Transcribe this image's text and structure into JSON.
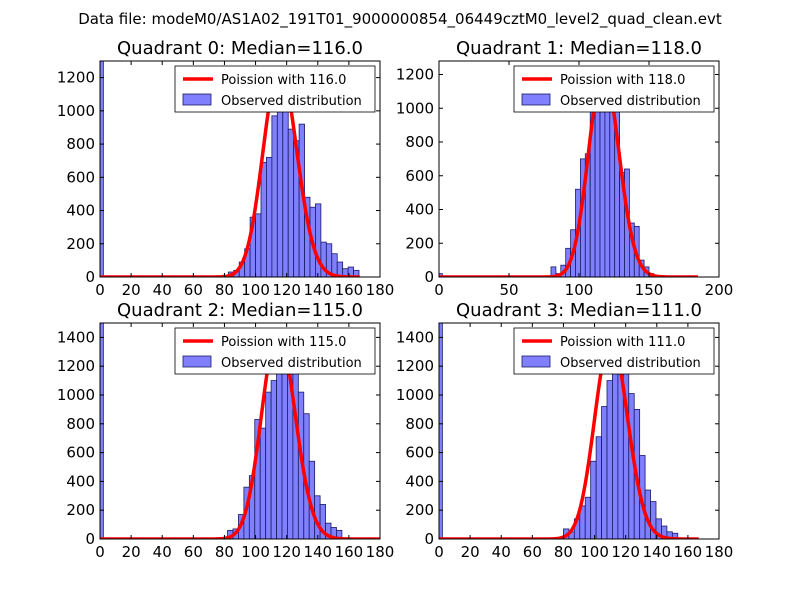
{
  "figure": {
    "suptitle": "Data file: modeM0/AS1A02_191T01_9000000854_06449cztM0_level2_quad_clean.evt"
  },
  "chart_data": [
    {
      "type": "bar",
      "title": "Quadrant 0: Median=116.0",
      "xlim": [
        0,
        180
      ],
      "ylim": [
        0,
        1300
      ],
      "xticks": [
        0,
        20,
        40,
        60,
        80,
        100,
        120,
        140,
        160,
        180
      ],
      "yticks": [
        0,
        200,
        400,
        600,
        800,
        1000,
        1200
      ],
      "legend": {
        "placement": "top-right",
        "line_label": "Poission with 116.0",
        "bar_label": "Observed distribution"
      },
      "line_color": "#ff0000",
      "bar_color": "#8080ff",
      "median": 116,
      "line_x_range": [
        0,
        167
      ],
      "bins": {
        "start": 79,
        "width": 3.5
      },
      "counts": [
        1303,
        10,
        30,
        40,
        90,
        170,
        360,
        380,
        690,
        720,
        970,
        1000,
        1260,
        890,
        820,
        920,
        480,
        420,
        440,
        210,
        200,
        140,
        90,
        50,
        60,
        40
      ],
      "count_start": 0
    },
    {
      "type": "bar",
      "title": "Quadrant 1: Median=118.0",
      "xlim": [
        0,
        200
      ],
      "ylim": [
        0,
        1280
      ],
      "xticks": [
        0,
        50,
        100,
        150,
        200
      ],
      "yticks": [
        0,
        200,
        400,
        600,
        800,
        1000,
        1200
      ],
      "legend": {
        "placement": "top-right",
        "line_label": "Poission with 118.0",
        "bar_label": "Observed distribution"
      },
      "line_color": "#ff0000",
      "bar_color": "#8080ff",
      "median": 118,
      "line_x_range": [
        0,
        185
      ],
      "bins": {
        "start": 80,
        "width": 3.5
      },
      "counts": [
        20,
        60,
        20,
        70,
        170,
        280,
        520,
        700,
        730,
        1000,
        1220,
        1220,
        1030,
        1000,
        1030,
        620,
        640,
        320,
        300,
        100,
        60,
        20
      ],
      "count_start": 0
    },
    {
      "type": "bar",
      "title": "Quadrant 2: Median=115.0",
      "xlim": [
        0,
        180
      ],
      "ylim": [
        0,
        1500
      ],
      "xticks": [
        0,
        20,
        40,
        60,
        80,
        100,
        120,
        140,
        160,
        180
      ],
      "yticks": [
        0,
        200,
        400,
        600,
        800,
        1000,
        1200,
        1400
      ],
      "legend": {
        "placement": "top-right",
        "line_label": "Poission with 115.0",
        "bar_label": "Observed distribution"
      },
      "line_color": "#ff0000",
      "bar_color": "#8080ff",
      "median": 115,
      "line_x_range": [
        0,
        180
      ],
      "bins": {
        "start": 82,
        "width": 3.5
      },
      "counts": [
        1500,
        60,
        70,
        170,
        360,
        440,
        830,
        770,
        1020,
        1100,
        1350,
        1300,
        1440,
        1280,
        1020,
        870,
        540,
        300,
        240,
        110,
        80,
        60
      ],
      "count_start": 0
    },
    {
      "type": "bar",
      "title": "Quadrant 3: Median=111.0",
      "xlim": [
        0,
        180
      ],
      "ylim": [
        0,
        1500
      ],
      "xticks": [
        0,
        20,
        40,
        60,
        80,
        100,
        120,
        140,
        160,
        180
      ],
      "yticks": [
        0,
        200,
        400,
        600,
        800,
        1000,
        1200,
        1400
      ],
      "legend": {
        "placement": "top-right",
        "line_label": "Poission with 111.0",
        "bar_label": "Observed distribution"
      },
      "line_color": "#ff0000",
      "bar_color": "#8080ff",
      "median": 111,
      "line_x_range": [
        0,
        167
      ],
      "bins": {
        "start": 80,
        "width": 3.5
      },
      "counts": [
        1500,
        70,
        50,
        140,
        230,
        290,
        540,
        710,
        920,
        1100,
        1300,
        1390,
        1270,
        1010,
        900,
        580,
        340,
        260,
        140,
        90,
        50,
        40
      ],
      "count_start": 0
    }
  ]
}
